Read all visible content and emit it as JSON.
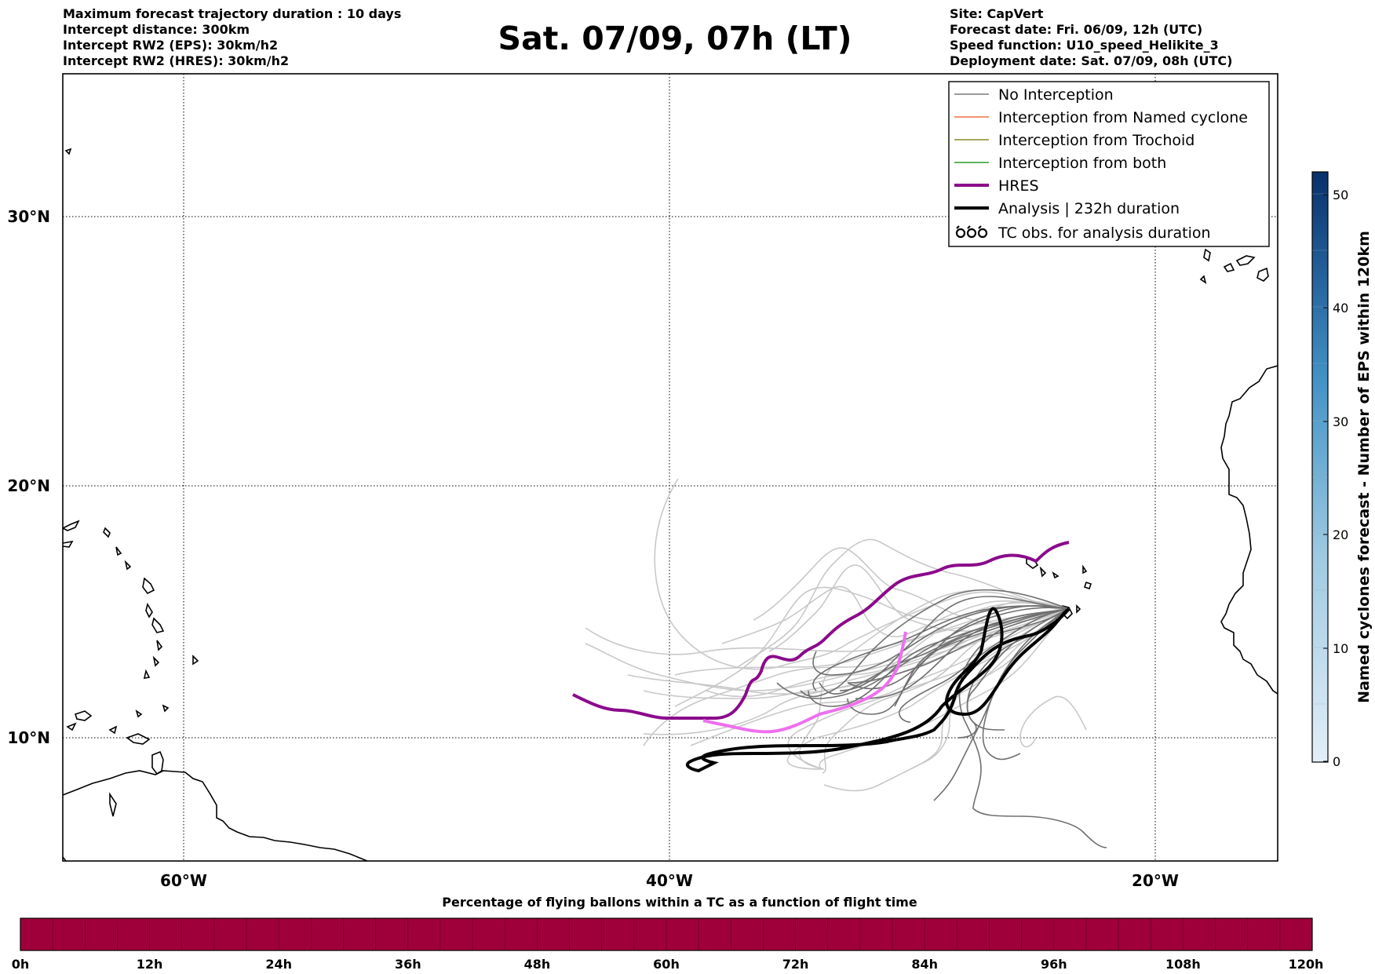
{
  "header": {
    "left_lines": [
      "Maximum forecast trajectory duration : 10 days",
      "Intercept distance: 300km",
      "Intercept RW2 (EPS):  30km/h2",
      "Intercept RW2 (HRES): 30km/h2"
    ],
    "title": "Sat. 07/09, 07h (LT)",
    "right_lines": [
      "Site: CapVert",
      "Forecast date: Fri. 06/09, 12h (UTC)",
      "Speed function: U10_speed_Helikite_3",
      "Deployment date: Sat. 07/09, 08h (UTC)"
    ]
  },
  "map": {
    "lon_labels": [
      "60°W",
      "40°W",
      "20°W"
    ],
    "lat_labels": [
      "30°N",
      "20°N",
      "10°N"
    ],
    "lon_range": [
      -65,
      -15
    ],
    "lat_range": [
      5.4,
      34.6
    ],
    "gridlines": true
  },
  "legend": {
    "items": [
      {
        "label": "No Interception",
        "color": "#7a7a7a",
        "style": "thin"
      },
      {
        "label": "Interception from Named cyclone",
        "color": "#f07040",
        "style": "thin"
      },
      {
        "label": "Interception from Trochoid",
        "color": "#8a8a2a",
        "style": "thin"
      },
      {
        "label": "Interception from both",
        "color": "#2a9a2a",
        "style": "thin"
      },
      {
        "label": "HRES",
        "color": "#8b0a8b",
        "style": "thick"
      },
      {
        "label": "Analysis | 232h duration",
        "color": "#000000",
        "style": "thick"
      },
      {
        "label": "TC obs. for analysis duration",
        "color": "#000000",
        "style": "tc-symbol",
        "icon": "tc-symbol-icon"
      }
    ]
  },
  "colorbar_right": {
    "title": "Named cyclones forecast - Number of EPS within 120km",
    "ticks": [
      "0",
      "10",
      "20",
      "30",
      "40",
      "50"
    ],
    "min": 0,
    "max": 52,
    "color_low": "#e3eef8",
    "color_high": "#08306b"
  },
  "bottom_bar": {
    "title": "Percentage of flying ballons within a TC as a function of flight time",
    "ticks": [
      "0h",
      "12h",
      "24h",
      "36h",
      "48h",
      "60h",
      "72h",
      "84h",
      "96h",
      "108h",
      "120h"
    ],
    "color": "#a0003a"
  }
}
